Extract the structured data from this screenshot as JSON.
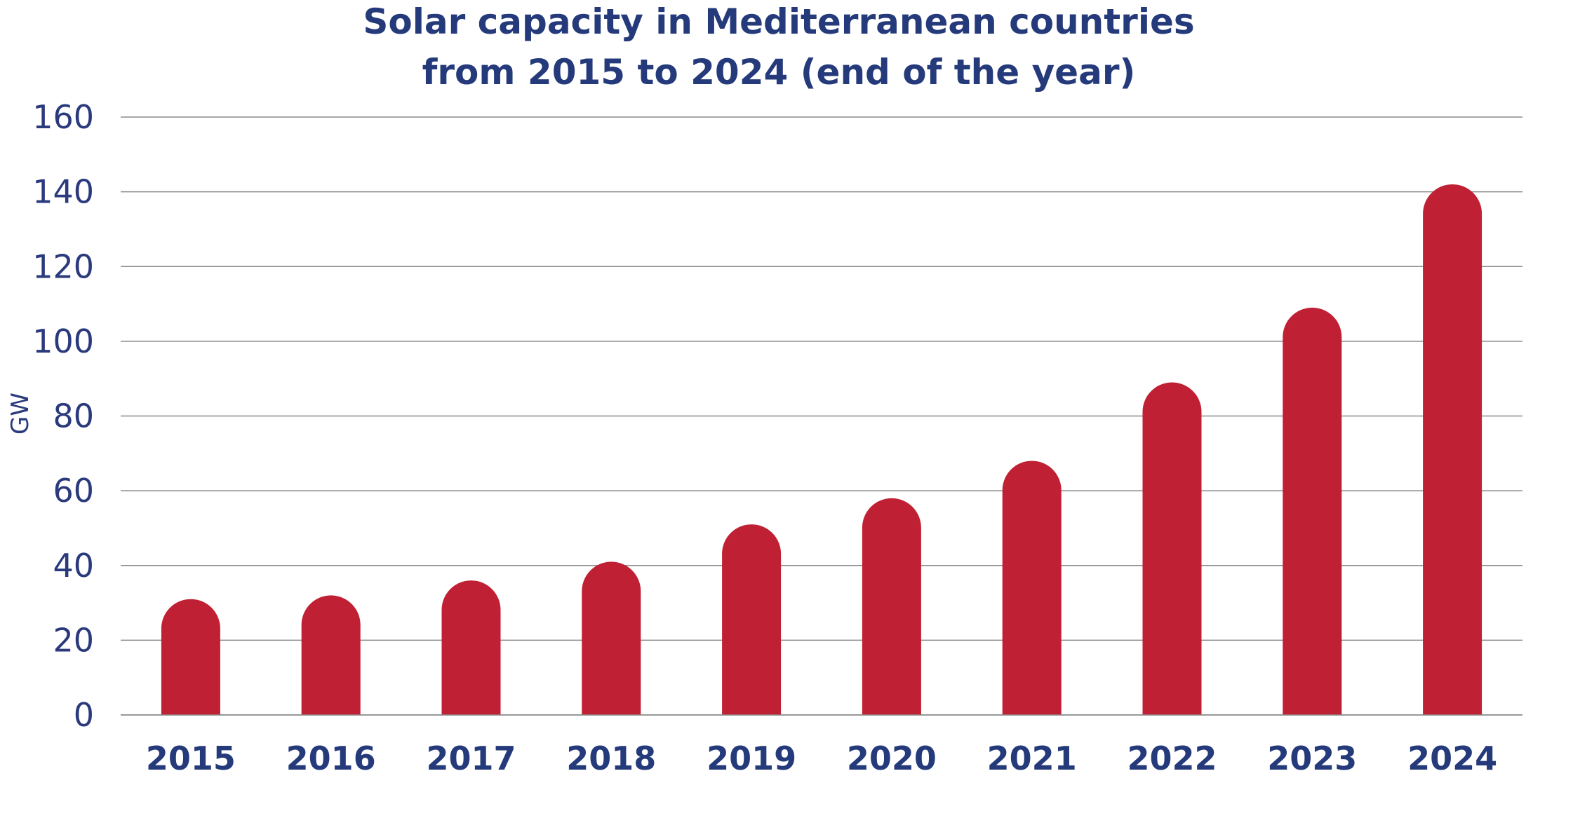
{
  "chart_data": {
    "type": "bar",
    "title": "Solar capacity in Mediterranean countries",
    "subtitle": "from 2015 to 2024 (end of the year)",
    "xlabel": "",
    "ylabel": "GW",
    "categories": [
      "2015",
      "2016",
      "2017",
      "2018",
      "2019",
      "2020",
      "2021",
      "2022",
      "2023",
      "2024"
    ],
    "values": [
      31,
      32,
      36,
      41,
      51,
      58,
      68,
      89,
      109,
      142
    ],
    "ylim": [
      0,
      160
    ],
    "yticks": [
      "0",
      "20",
      "40",
      "60",
      "80",
      "100",
      "120",
      "140",
      "160"
    ],
    "grid": true,
    "legend": "none",
    "colors": {
      "bar": "#c02033",
      "text": "#253a7a",
      "grid": "#8a8a8a"
    }
  }
}
